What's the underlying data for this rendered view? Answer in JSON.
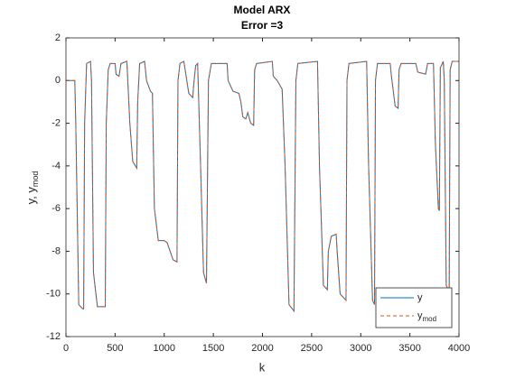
{
  "chart_data": {
    "type": "line",
    "title": [
      "Model ARX",
      "Error =3"
    ],
    "xlabel": "k",
    "ylabel": {
      "text": "y, y",
      "sub": "mod"
    },
    "xlim": [
      0,
      4000
    ],
    "xticks": [
      0,
      500,
      1000,
      1500,
      2000,
      2500,
      3000,
      3500,
      4000
    ],
    "ylim": [
      -12,
      2
    ],
    "yticks": [
      -12,
      -10,
      -8,
      -6,
      -4,
      -2,
      0,
      2
    ],
    "legend": "southeast",
    "x": [
      0,
      90,
      100,
      130,
      170,
      180,
      190,
      210,
      250,
      260,
      280,
      320,
      400,
      410,
      430,
      450,
      500,
      510,
      540,
      560,
      620,
      650,
      680,
      720,
      730,
      750,
      800,
      820,
      860,
      880,
      900,
      940,
      1000,
      1030,
      1060,
      1090,
      1130,
      1140,
      1160,
      1200,
      1220,
      1250,
      1290,
      1300,
      1320,
      1340,
      1370,
      1400,
      1430,
      1450,
      1480,
      1640,
      1650,
      1700,
      1760,
      1780,
      1800,
      1830,
      1850,
      1880,
      1910,
      1920,
      1940,
      2100,
      2110,
      2150,
      2200,
      2230,
      2270,
      2320,
      2340,
      2360,
      2560,
      2580,
      2620,
      2660,
      2670,
      2700,
      2750,
      2760,
      2790,
      2850,
      2860,
      2880,
      3060,
      3080,
      3120,
      3140,
      3150,
      3170,
      3300,
      3310,
      3350,
      3380,
      3390,
      3410,
      3560,
      3580,
      3660,
      3680,
      3740,
      3760,
      3790,
      3800,
      3810,
      3840,
      3850,
      3870,
      3900,
      3910,
      3930,
      4000
    ],
    "series": [
      {
        "name": "y",
        "color": "#0072bd",
        "dash": false,
        "values": [
          0,
          0,
          -2,
          -10.5,
          -10.7,
          -10.7,
          -2,
          0.8,
          0.9,
          0,
          -9,
          -10.6,
          -10.6,
          -2,
          0.5,
          0.8,
          0.8,
          0.3,
          0.2,
          0.8,
          0.9,
          -2,
          -3.8,
          -4.1,
          -1,
          0.8,
          0.9,
          0,
          -0.5,
          -0.6,
          -6,
          -7.5,
          -7.5,
          -7.6,
          -8,
          -8.4,
          -8.5,
          0,
          0.8,
          0.9,
          0.3,
          -0.6,
          -0.8,
          -0.2,
          0.7,
          0.8,
          -4,
          -9,
          -9.5,
          0,
          0.8,
          0.8,
          0,
          -0.5,
          -0.6,
          -1,
          -1.7,
          -1.8,
          -1.5,
          -2,
          -2.1,
          0.5,
          0.8,
          0.9,
          0.2,
          0,
          -0.4,
          -4,
          -10.5,
          -10.8,
          0,
          0.8,
          0.9,
          -4,
          -9.6,
          -9.8,
          -8,
          -7.3,
          -7.2,
          -8,
          -10,
          -10.3,
          0,
          0.8,
          0.9,
          -4,
          -10.3,
          -10.5,
          0,
          0.8,
          0.8,
          0.3,
          -1.2,
          -1.3,
          0.5,
          0.8,
          0.8,
          0.4,
          0.3,
          0.8,
          0.8,
          -3,
          -6,
          -6.1,
          0.6,
          0.9,
          0,
          -9.6,
          -9.9,
          0.5,
          0.9,
          0.9
        ]
      },
      {
        "name": "y",
        "name_sub": "mod",
        "color": "#d95319",
        "dash": true,
        "values": [
          0,
          0,
          -2,
          -10.5,
          -10.7,
          -10.7,
          -2,
          0.8,
          0.9,
          0,
          -9,
          -10.6,
          -10.6,
          -2,
          0.5,
          0.8,
          0.8,
          0.3,
          0.2,
          0.8,
          0.9,
          -2,
          -3.8,
          -4.1,
          -1,
          0.8,
          0.9,
          0,
          -0.5,
          -0.6,
          -6,
          -7.5,
          -7.5,
          -7.6,
          -8,
          -8.4,
          -8.5,
          0,
          0.8,
          0.9,
          0.3,
          -0.6,
          -0.8,
          -0.2,
          0.7,
          0.8,
          -4,
          -9,
          -9.5,
          0,
          0.8,
          0.8,
          0,
          -0.5,
          -0.6,
          -1,
          -1.7,
          -1.8,
          -1.5,
          -2,
          -2.1,
          0.5,
          0.8,
          0.9,
          0.2,
          0,
          -0.4,
          -4,
          -10.5,
          -10.8,
          0,
          0.8,
          0.9,
          -4,
          -9.6,
          -9.8,
          -8,
          -7.3,
          -7.2,
          -8,
          -10,
          -10.3,
          0,
          0.8,
          0.9,
          -4,
          -10.3,
          -10.5,
          0,
          0.8,
          0.8,
          0.3,
          -1.2,
          -1.3,
          0.5,
          0.8,
          0.8,
          0.4,
          0.3,
          0.8,
          0.8,
          -3,
          -6,
          -6.1,
          0.6,
          0.9,
          0,
          -9.6,
          -9.9,
          0.5,
          0.9,
          0.9
        ]
      }
    ]
  }
}
